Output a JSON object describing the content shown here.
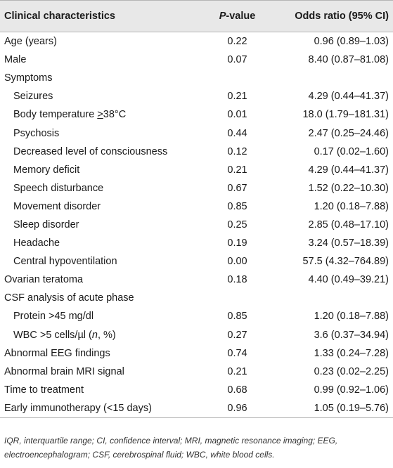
{
  "table": {
    "headers": {
      "characteristic": "Clinical characteristics",
      "p_prefix": "P",
      "p_suffix": "-value",
      "odds_ratio": "Odds ratio (95% CI)"
    },
    "rows": [
      {
        "label": "Age (years)",
        "p": "0.22",
        "or": "0.96 (0.89–1.03)",
        "indent": false
      },
      {
        "label": "Male",
        "p": "0.07",
        "or": "8.40 (0.87–81.08)",
        "indent": false
      },
      {
        "label": "Symptoms",
        "p": "",
        "or": "",
        "indent": false
      },
      {
        "label": "Seizures",
        "p": "0.21",
        "or": "4.29 (0.44–41.37)",
        "indent": true
      },
      {
        "label_pre": "Body temperature ",
        "label_ge": ">",
        "label_post": "38°C",
        "p": "0.01",
        "or": "18.0 (1.79–181.31)",
        "indent": true
      },
      {
        "label": "Psychosis",
        "p": "0.44",
        "or": "2.47 (0.25–24.46)",
        "indent": true
      },
      {
        "label": "Decreased level of consciousness",
        "p": "0.12",
        "or": "0.17 (0.02–1.60)",
        "indent": true
      },
      {
        "label": "Memory deficit",
        "p": "0.21",
        "or": "4.29 (0.44–41.37)",
        "indent": true
      },
      {
        "label": "Speech disturbance",
        "p": "0.67",
        "or": "1.52 (0.22–10.30)",
        "indent": true
      },
      {
        "label": "Movement disorder",
        "p": "0.85",
        "or": "1.20 (0.18–7.88)",
        "indent": true
      },
      {
        "label": "Sleep disorder",
        "p": "0.25",
        "or": "2.85 (0.48–17.10)",
        "indent": true
      },
      {
        "label": "Headache",
        "p": "0.19",
        "or": "3.24 (0.57–18.39)",
        "indent": true
      },
      {
        "label": "Central hypoventilation",
        "p": "0.00",
        "or": "57.5 (4.32–764.89)",
        "indent": true
      },
      {
        "label": "Ovarian teratoma",
        "p": "0.18",
        "or": "4.40 (0.49–39.21)",
        "indent": false
      },
      {
        "label": "CSF analysis of acute phase",
        "p": "",
        "or": "",
        "indent": false
      },
      {
        "label": "Protein >45 mg/dl",
        "p": "0.85",
        "or": "1.20 (0.18–7.88)",
        "indent": true
      },
      {
        "label_pre": "WBC >5 cells/µl (",
        "label_it": "n",
        "label_post": ", %)",
        "p": "0.27",
        "or": "3.6 (0.37–34.94)",
        "indent": true
      },
      {
        "label": "Abnormal EEG findings",
        "p": "0.74",
        "or": "1.33 (0.24–7.28)",
        "indent": false
      },
      {
        "label": "Abnormal brain MRI signal",
        "p": "0.21",
        "or": "0.23 (0.02–2.25)",
        "indent": false
      },
      {
        "label": "Time to treatment",
        "p": "0.68",
        "or": "0.99 (0.92–1.06)",
        "indent": false
      },
      {
        "label": "Early immunotherapy (<15 days)",
        "p": "0.96",
        "or": "1.05 (0.19–5.76)",
        "indent": false
      }
    ]
  },
  "footnote": "IQR, interquartile range; CI, confidence interval; MRI, magnetic resonance imaging; EEG, electroencephalogram; CSF, cerebrospinal fluid; WBC, white blood cells.",
  "colors": {
    "header_bg": "#e8e8e8",
    "rule": "#b5b5b5",
    "text": "#1a1a1a"
  }
}
